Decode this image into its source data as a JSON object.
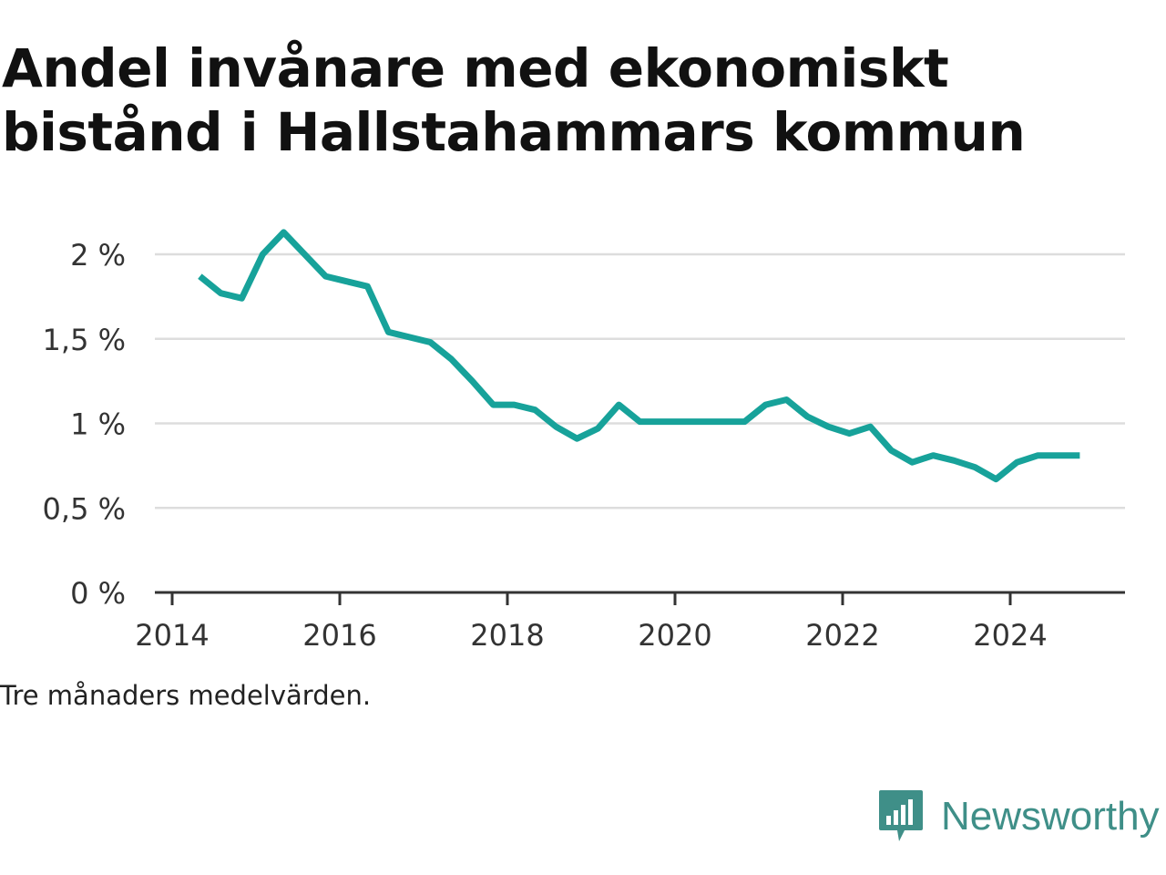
{
  "title_line1": "Andel invånare med ekonomiskt",
  "title_line2": "bistånd i Hallstahammars kommun",
  "note": "Tre månaders medelvärden.",
  "brand": "Newsworthy",
  "colors": {
    "line": "#17a29a",
    "grid": "#dddddd",
    "axis": "#333333",
    "brand": "#3f8f88"
  },
  "chart_data": {
    "type": "line",
    "title": "Andel invånare med ekonomiskt bistånd i Hallstahammars kommun",
    "xlabel": "",
    "ylabel": "",
    "xlim": [
      2014,
      2025.6
    ],
    "ylim": [
      0,
      2.2
    ],
    "y_ticks": [
      0,
      0.5,
      1,
      1.5,
      2
    ],
    "y_tick_labels": [
      "0 %",
      "0,5 %",
      "1 %",
      "1,5 %",
      "2 %"
    ],
    "x_ticks": [
      2014,
      2016,
      2018,
      2020,
      2022,
      2024
    ],
    "x_tick_labels": [
      "2014",
      "2016",
      "2018",
      "2020",
      "2022",
      "2024"
    ],
    "grid": true,
    "series": [
      {
        "x": [
          2014.33,
          2014.58,
          2014.83,
          2015.08,
          2015.33,
          2015.58,
          2015.83,
          2016.08,
          2016.33,
          2016.58,
          2016.83,
          2017.08,
          2017.33,
          2017.58,
          2017.83,
          2018.08,
          2018.33,
          2018.58,
          2018.83,
          2019.08,
          2019.33,
          2019.58,
          2019.83,
          2020.08,
          2020.33,
          2020.58,
          2020.83,
          2021.08,
          2021.33,
          2021.58,
          2021.83,
          2022.08,
          2022.33,
          2022.58,
          2022.83,
          2023.08,
          2023.33,
          2023.58,
          2023.83,
          2024.08,
          2024.33,
          2024.58,
          2024.83
        ],
        "values": [
          1.87,
          1.77,
          1.74,
          2.0,
          2.13,
          2.0,
          1.87,
          1.84,
          1.81,
          1.54,
          1.51,
          1.48,
          1.38,
          1.25,
          1.11,
          1.11,
          1.08,
          0.98,
          0.91,
          0.97,
          1.11,
          1.01,
          1.01,
          1.01,
          1.01,
          1.01,
          1.01,
          1.11,
          1.14,
          1.04,
          0.98,
          0.94,
          0.98,
          0.84,
          0.77,
          0.81,
          0.78,
          0.74,
          0.67,
          0.77,
          0.81,
          0.81,
          0.81
        ]
      }
    ]
  }
}
